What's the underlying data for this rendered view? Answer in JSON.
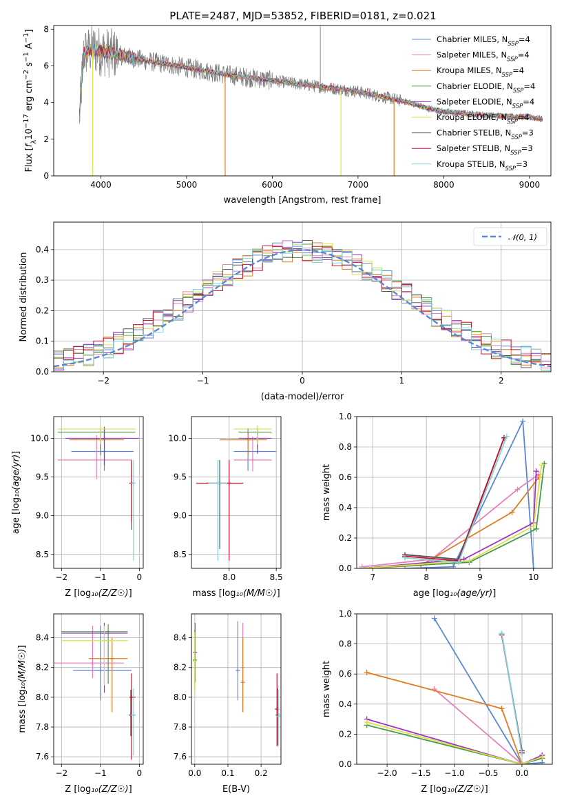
{
  "figure_title": "PLATE=2487, MJD=53852, FIBERID=0181, z=0.021",
  "colors": {
    "observed": "#808080",
    "Chabrier MILES": "#5b86d6",
    "Salpeter MILES": "#e67fbc",
    "Kroupa MILES": "#e07b1e",
    "Chabrier ELODIE": "#4a9a4a",
    "Salpeter ELODIE": "#9a32c8",
    "Kroupa ELODIE": "#d9e04a",
    "Chabrier STELIB": "#555555",
    "Salpeter STELIB": "#c8102e",
    "Kroupa STELIB": "#7fd3d8",
    "gaussian": "#5b86d6"
  },
  "chart_data": [
    {
      "id": "spectrum",
      "type": "line",
      "xlabel": "wavelength [Angstrom, rest frame]",
      "ylabel": "Flux [f_λ 10^-17 erg cm^-2 s^-1 A^-1]",
      "xlim": [
        3450,
        9250
      ],
      "ylim": [
        0,
        8.2
      ],
      "xticks": [
        4000,
        5000,
        6000,
        7000,
        8000,
        9000
      ],
      "yticks": [
        0,
        2,
        4,
        6,
        8
      ],
      "continuum": {
        "x": [
          3750,
          3800,
          3900,
          4000,
          4100,
          4300,
          4500,
          5000,
          5500,
          6000,
          6500,
          7000,
          7400,
          7600,
          7800,
          8000,
          8500,
          9000,
          9150
        ],
        "y": [
          3.2,
          6.7,
          6.9,
          6.8,
          6.7,
          6.5,
          6.3,
          5.9,
          5.5,
          5.2,
          4.9,
          4.6,
          4.2,
          4.0,
          3.7,
          3.5,
          3.3,
          3.2,
          3.1
        ]
      },
      "legend_location": "upper right",
      "series": [
        {
          "name": "Chabrier MILES",
          "label_nssp": "4"
        },
        {
          "name": "Salpeter MILES",
          "label_nssp": "4"
        },
        {
          "name": "Kroupa MILES",
          "label_nssp": "4"
        },
        {
          "name": "Chabrier ELODIE",
          "label_nssp": "4"
        },
        {
          "name": "Salpeter ELODIE",
          "label_nssp": "4"
        },
        {
          "name": "Kroupa ELODIE",
          "label_nssp": "4"
        },
        {
          "name": "Chabrier STELIB",
          "label_nssp": "3"
        },
        {
          "name": "Salpeter STELIB",
          "label_nssp": "3"
        },
        {
          "name": "Kroupa STELIB",
          "label_nssp": "3"
        }
      ],
      "drops": [
        {
          "x": 3905,
          "color": "Kroupa ELODIE"
        },
        {
          "x": 5450,
          "color": "Kroupa MILES"
        },
        {
          "x": 6800,
          "color": "Kroupa ELODIE"
        },
        {
          "x": 7420,
          "color": "Kroupa MILES"
        }
      ]
    },
    {
      "id": "residuals",
      "type": "histogram",
      "xlabel": "(data-model)/error",
      "ylabel": "Normed distribution",
      "xlim": [
        -2.5,
        2.5
      ],
      "ylim": [
        0,
        0.49
      ],
      "xticks": [
        -2,
        -1,
        0,
        1,
        2
      ],
      "yticks": [
        0.0,
        0.1,
        0.2,
        0.3,
        0.4
      ],
      "bin_width": 0.1,
      "gaussian_label": "𝒩(0, 1)",
      "legend_location": "upper right"
    },
    {
      "id": "age_vs_Z",
      "type": "errorbar",
      "xlabel": "Z [log10(Z/Z☉)]",
      "ylabel": "age [log10(age/yr)]",
      "xlim": [
        -2.2,
        0.1
      ],
      "ylim": [
        8.32,
        10.28
      ],
      "xticks": [
        -2,
        -1,
        0
      ],
      "yticks": [
        8.5,
        9.0,
        9.5,
        10.0
      ],
      "points": [
        {
          "series": "Chabrier MILES",
          "x": -0.9,
          "y": 9.83,
          "xerr": [
            0.85,
            0.75
          ],
          "yerr": [
            0.25,
            0.3
          ]
        },
        {
          "series": "Salpeter MILES",
          "x": -1.1,
          "y": 9.72,
          "xerr": [
            1.0,
            0.9
          ],
          "yerr": [
            0.25,
            0.32
          ]
        },
        {
          "series": "Kroupa MILES",
          "x": -1.0,
          "y": 9.98,
          "xerr": [
            0.8,
            0.6
          ],
          "yerr": [
            0.15,
            0.14
          ]
        },
        {
          "series": "Chabrier ELODIE",
          "x": -1.0,
          "y": 10.08,
          "xerr": [
            1.1,
            0.9
          ],
          "yerr": [
            0.3,
            0.05
          ]
        },
        {
          "series": "Salpeter ELODIE",
          "x": -0.9,
          "y": 10.0,
          "xerr": [
            1.0,
            0.9
          ],
          "yerr": [
            0.35,
            0.15
          ]
        },
        {
          "series": "Kroupa ELODIE",
          "x": -1.0,
          "y": 10.12,
          "xerr": [
            1.1,
            0.9
          ],
          "yerr": [
            0.2,
            0.05
          ]
        },
        {
          "series": "Chabrier STELIB",
          "x": -0.2,
          "y": 9.42,
          "xerr": [
            0.05,
            0.05
          ],
          "yerr": [
            0.6,
            0.3
          ]
        },
        {
          "series": "Salpeter STELIB",
          "x": -0.2,
          "y": 9.42,
          "xerr": [
            0.06,
            0.05
          ],
          "yerr": [
            0.5,
            0.28
          ]
        },
        {
          "series": "Kroupa STELIB",
          "x": -0.15,
          "y": 9.42,
          "xerr": [
            0.08,
            0.05
          ],
          "yerr": [
            1.0,
            0.3
          ]
        }
      ]
    },
    {
      "id": "age_vs_mass",
      "type": "errorbar",
      "xlabel": "mass [log10(M/M☉)]",
      "ylabel": "",
      "xlim": [
        7.6,
        8.55
      ],
      "ylim": [
        8.32,
        10.28
      ],
      "xticks": [
        8.0,
        8.5
      ],
      "yticks": [
        8.5,
        9.0,
        9.5,
        10.0
      ],
      "points": [
        {
          "series": "Chabrier MILES",
          "x": 8.2,
          "y": 9.83,
          "xerr": [
            0.15,
            0.3
          ],
          "yerr": [
            0.25,
            0.3
          ]
        },
        {
          "series": "Salpeter MILES",
          "x": 8.25,
          "y": 9.72,
          "xerr": [
            0.2,
            0.2
          ],
          "yerr": [
            0.15,
            0.3
          ]
        },
        {
          "series": "Kroupa MILES",
          "x": 8.2,
          "y": 9.98,
          "xerr": [
            0.3,
            0.2
          ],
          "yerr": [
            0.2,
            0.1
          ]
        },
        {
          "series": "Chabrier ELODIE",
          "x": 8.3,
          "y": 10.08,
          "xerr": [
            0.2,
            0.15
          ],
          "yerr": [
            0.2,
            0.05
          ]
        },
        {
          "series": "Salpeter ELODIE",
          "x": 8.3,
          "y": 10.0,
          "xerr": [
            0.2,
            0.15
          ],
          "yerr": [
            0.2,
            0.1
          ]
        },
        {
          "series": "Kroupa ELODIE",
          "x": 8.3,
          "y": 10.12,
          "xerr": [
            0.25,
            0.15
          ],
          "yerr": [
            0.2,
            0.05
          ]
        },
        {
          "series": "Chabrier STELIB",
          "x": 7.9,
          "y": 9.42,
          "xerr": [
            0.15,
            0.1
          ],
          "yerr": [
            0.85,
            0.3
          ]
        },
        {
          "series": "Salpeter STELIB",
          "x": 8.0,
          "y": 9.42,
          "xerr": [
            0.35,
            0.15
          ],
          "yerr": [
            1.0,
            0.3
          ]
        },
        {
          "series": "Kroupa STELIB",
          "x": 7.88,
          "y": 9.42,
          "xerr": [
            0.1,
            0.1
          ],
          "yerr": [
            1.0,
            0.3
          ]
        }
      ]
    },
    {
      "id": "mass_weight_vs_age",
      "type": "line",
      "xlabel": "age [log10(age/yr)]",
      "ylabel": "mass weight",
      "xlim": [
        6.7,
        10.35
      ],
      "ylim": [
        0,
        1.0
      ],
      "xticks": [
        7,
        8,
        9,
        10
      ],
      "yticks": [
        0.0,
        0.2,
        0.4,
        0.6,
        0.8,
        1.0
      ],
      "series": [
        {
          "name": "Chabrier MILES",
          "x": [
            7.6,
            8.5,
            9.8,
            10.0
          ],
          "y": [
            0.0,
            0.01,
            0.97,
            0.0
          ]
        },
        {
          "name": "Salpeter MILES",
          "x": [
            6.8,
            8.1,
            9.7,
            10.1
          ],
          "y": [
            0.01,
            0.06,
            0.52,
            0.62
          ]
        },
        {
          "name": "Kroupa MILES",
          "x": [
            6.8,
            7.9,
            9.6,
            10.1
          ],
          "y": [
            0.0,
            0.02,
            0.37,
            0.6
          ]
        },
        {
          "name": "Chabrier ELODIE",
          "x": [
            6.8,
            8.8,
            10.05,
            10.2
          ],
          "y": [
            0.0,
            0.04,
            0.26,
            0.69
          ]
        },
        {
          "name": "Salpeter ELODIE",
          "x": [
            6.8,
            8.7,
            10.0,
            10.05
          ],
          "y": [
            0.0,
            0.06,
            0.3,
            0.64
          ]
        },
        {
          "name": "Kroupa ELODIE",
          "x": [
            6.8,
            8.8,
            10.0,
            10.15
          ],
          "y": [
            0.0,
            0.05,
            0.28,
            0.68
          ]
        },
        {
          "name": "Chabrier STELIB",
          "x": [
            7.6,
            8.6,
            9.45
          ],
          "y": [
            0.09,
            0.06,
            0.86
          ]
        },
        {
          "name": "Salpeter STELIB",
          "x": [
            7.6,
            8.6,
            9.45
          ],
          "y": [
            0.08,
            0.05,
            0.86
          ]
        },
        {
          "name": "Kroupa STELIB",
          "x": [
            7.6,
            8.6,
            9.5
          ],
          "y": [
            0.07,
            0.04,
            0.87
          ]
        }
      ]
    },
    {
      "id": "mass_vs_Z",
      "type": "errorbar",
      "xlabel": "Z [log10(Z/Z☉)]",
      "ylabel": "mass [log10(M/M☉)]",
      "xlim": [
        -2.2,
        0.1
      ],
      "ylim": [
        7.55,
        8.56
      ],
      "xticks": [
        -2,
        -1,
        0
      ],
      "yticks": [
        7.6,
        7.8,
        8.0,
        8.2,
        8.4
      ],
      "points": [
        {
          "series": "Chabrier MILES",
          "x": -1.0,
          "y": 8.18,
          "xerr": [
            0.7,
            0.8
          ],
          "yerr": [
            0.2,
            0.3
          ]
        },
        {
          "series": "Salpeter MILES",
          "x": -1.2,
          "y": 8.23,
          "xerr": [
            1.0,
            0.8
          ],
          "yerr": [
            0.1,
            0.25
          ]
        },
        {
          "series": "Kroupa MILES",
          "x": -0.7,
          "y": 8.26,
          "xerr": [
            0.6,
            0.4
          ],
          "yerr": [
            0.36,
            0.14
          ]
        },
        {
          "series": "Chabrier ELODIE",
          "x": -0.8,
          "y": 8.44,
          "xerr": [
            1.2,
            0.5
          ],
          "yerr": [
            0.35,
            0.05
          ]
        },
        {
          "series": "Salpeter ELODIE",
          "x": -0.9,
          "y": 8.43,
          "xerr": [
            1.1,
            0.6
          ],
          "yerr": [
            0.4,
            0.07
          ]
        },
        {
          "series": "Kroupa ELODIE",
          "x": -0.9,
          "y": 8.38,
          "xerr": [
            1.1,
            0.6
          ],
          "yerr": [
            0.3,
            0.1
          ]
        },
        {
          "series": "Chabrier STELIB",
          "x": -0.22,
          "y": 7.88,
          "xerr": [
            0.05,
            0.05
          ],
          "yerr": [
            0.14,
            0.17
          ]
        },
        {
          "series": "Salpeter STELIB",
          "x": -0.2,
          "y": 8.0,
          "xerr": [
            0.05,
            0.1
          ],
          "yerr": [
            0.42,
            0.16
          ]
        },
        {
          "series": "Kroupa STELIB",
          "x": -0.15,
          "y": 7.88,
          "xerr": [
            0.08,
            0.05
          ],
          "yerr": [
            0.27,
            0.18
          ]
        }
      ]
    },
    {
      "id": "mass_vs_ebv",
      "type": "errorbar",
      "xlabel": "E(B-V)",
      "ylabel": "",
      "xlim": [
        -0.01,
        0.26
      ],
      "ylim": [
        7.55,
        8.56
      ],
      "xticks": [
        0.0,
        0.1,
        0.2
      ],
      "yticks": [
        7.6,
        7.8,
        8.0,
        8.2,
        8.4
      ],
      "points": [
        {
          "series": "Chabrier MILES",
          "x": 0.13,
          "y": 8.18,
          "yerr": [
            0.2,
            0.33
          ]
        },
        {
          "series": "Salpeter MILES",
          "x": 0.145,
          "y": 8.2,
          "yerr": [
            0.3,
            0.3
          ]
        },
        {
          "series": "Kroupa MILES",
          "x": 0.145,
          "y": 8.1,
          "yerr": [
            0.2,
            0.3
          ]
        },
        {
          "series": "Chabrier ELODIE",
          "x": 0.0,
          "y": 8.25,
          "yerr": [
            0.2,
            0.2
          ]
        },
        {
          "series": "Salpeter ELODIE",
          "x": 0.001,
          "y": 8.3,
          "yerr": [
            0.2,
            0.2
          ]
        },
        {
          "series": "Kroupa ELODIE",
          "x": 0.0,
          "y": 8.24,
          "yerr": [
            0.2,
            0.2
          ]
        },
        {
          "series": "Chabrier STELIB",
          "x": 0.25,
          "y": 7.88,
          "yerr": [
            0.2,
            0.18
          ]
        },
        {
          "series": "Salpeter STELIB",
          "x": 0.248,
          "y": 7.92,
          "yerr": [
            0.25,
            0.24
          ]
        },
        {
          "series": "Kroupa STELIB",
          "x": 0.252,
          "y": 7.87,
          "yerr": [
            0.2,
            0.18
          ]
        }
      ]
    },
    {
      "id": "mass_weight_vs_Z",
      "type": "line",
      "xlabel": "Z [log10(Z/Z☉)]",
      "ylabel": "mass weight",
      "xlim": [
        -2.45,
        0.45
      ],
      "ylim": [
        0,
        1.0
      ],
      "xticks": [
        -2.0,
        -1.5,
        -1.0,
        -0.5,
        0.0
      ],
      "yticks": [
        0.0,
        0.2,
        0.4,
        0.6,
        0.8,
        1.0
      ],
      "series": [
        {
          "name": "Chabrier MILES",
          "x": [
            -1.3,
            0.0,
            0.3
          ],
          "y": [
            0.97,
            0.0,
            0.01
          ]
        },
        {
          "name": "Salpeter MILES",
          "x": [
            -1.3,
            0.0,
            0.3
          ],
          "y": [
            0.5,
            0.0,
            0.06
          ]
        },
        {
          "name": "Kroupa MILES",
          "x": [
            -2.3,
            -0.3,
            0.0
          ],
          "y": [
            0.61,
            0.37,
            0.0
          ]
        },
        {
          "name": "Chabrier ELODIE",
          "x": [
            -2.3,
            0.0,
            0.3
          ],
          "y": [
            0.26,
            0.0,
            0.04
          ]
        },
        {
          "name": "Salpeter ELODIE",
          "x": [
            -2.3,
            0.0,
            0.3
          ],
          "y": [
            0.3,
            0.0,
            0.06
          ]
        },
        {
          "name": "Kroupa ELODIE",
          "x": [
            -2.3,
            0.0,
            0.3
          ],
          "y": [
            0.28,
            0.0,
            0.05
          ]
        },
        {
          "name": "Chabrier STELIB",
          "x": [
            -0.3,
            0.0
          ],
          "y": [
            0.86,
            0.09
          ]
        },
        {
          "name": "Salpeter STELIB",
          "x": [
            -0.3,
            0.0
          ],
          "y": [
            0.86,
            0.08
          ]
        },
        {
          "name": "Kroupa STELIB",
          "x": [
            -0.3,
            0.0
          ],
          "y": [
            0.87,
            0.07
          ]
        }
      ]
    }
  ]
}
